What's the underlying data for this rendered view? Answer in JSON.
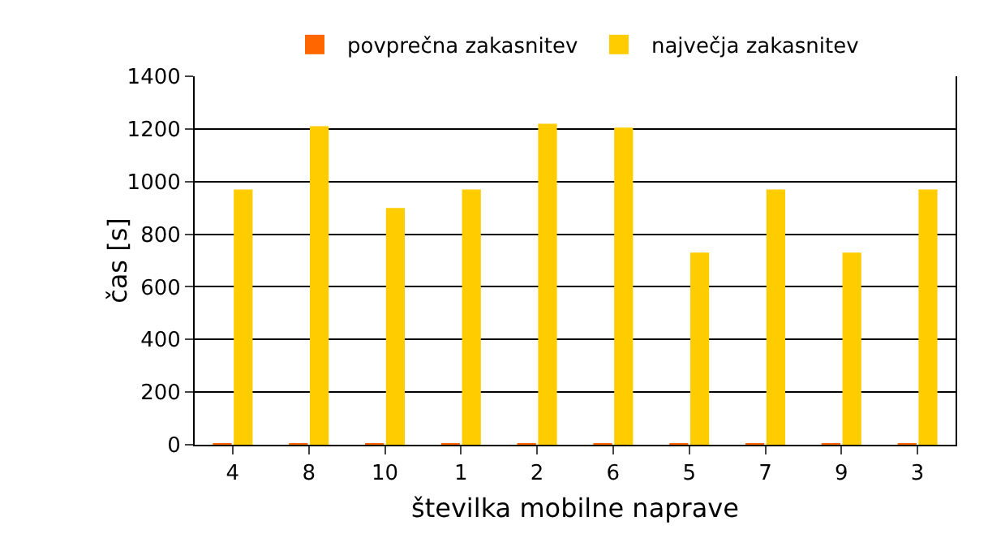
{
  "chart_data": {
    "type": "bar",
    "ylabel": "čas [s]",
    "xlabel": "številka mobilne naprave",
    "categories": [
      "4",
      "8",
      "10",
      "1",
      "2",
      "6",
      "5",
      "7",
      "9",
      "3"
    ],
    "series": [
      {
        "name": "povprečna zakasnitev",
        "color": "#ff6600",
        "values": [
          5,
          5,
          5,
          5,
          5,
          5,
          5,
          5,
          5,
          5
        ]
      },
      {
        "name": "največja zakasnitev",
        "color": "#ffcc00",
        "values": [
          970,
          1210,
          900,
          970,
          1220,
          1205,
          730,
          970,
          730,
          970
        ]
      }
    ],
    "ylim": [
      0,
      1400
    ],
    "yticks": [
      0,
      200,
      400,
      600,
      800,
      1000,
      1200,
      1400
    ],
    "grid": "y",
    "legend": "top"
  }
}
